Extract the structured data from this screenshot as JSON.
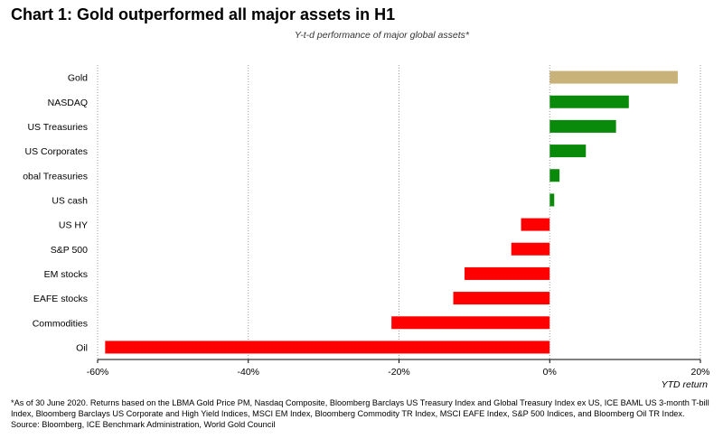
{
  "header": {
    "title": "Chart 1: Gold outperformed all major assets in H1",
    "subtitle": "Y-t-d performance of major global assets*"
  },
  "chart_data": {
    "type": "bar",
    "orientation": "horizontal",
    "categories": [
      "Gold",
      "NASDAQ",
      "US Treasuries",
      "US Corporates",
      "obal Treasuries",
      "US cash",
      "US HY",
      "S&P 500",
      "EM stocks",
      "EAFE stocks",
      "Commodities",
      "Oil"
    ],
    "values": [
      17.0,
      10.5,
      8.8,
      4.8,
      1.3,
      0.6,
      -3.8,
      -5.1,
      -11.3,
      -12.8,
      -21.0,
      -59.0
    ],
    "xlabel": "YTD return",
    "xlim": [
      -60,
      20
    ],
    "xticks": [
      -60,
      -40,
      -20,
      0,
      20
    ],
    "xtick_labels": [
      "-60%",
      "-40%",
      "-20%",
      "0%",
      "20%"
    ],
    "grid": "vertical dotted",
    "colors": {
      "gold": "#c9b27a",
      "positive": "#0a8a0a",
      "negative": "#ff0000"
    }
  },
  "footnote": {
    "text": "*As of 30 June 2020. Returns based on the LBMA Gold Price PM, Nasdaq Composite, Bloomberg Barclays US Treasury Index and Global Treasury Index ex US, ICE BAML US 3-month T-bill Index, Bloomberg Barclays US Corporate and High Yield Indices, MSCI EM Index, Bloomberg Commodity TR Index, MSCI EAFE Index, S&P 500 Indices, and Bloomberg Oil TR Index.",
    "source": "Source: Bloomberg, ICE Benchmark Administration, World Gold Council"
  }
}
